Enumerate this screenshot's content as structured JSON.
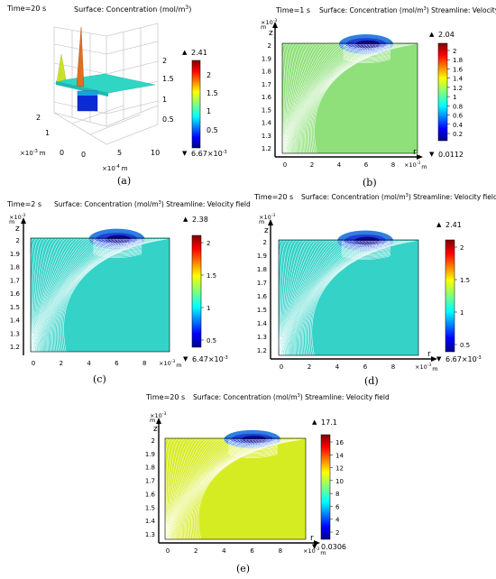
{
  "panels": [
    {
      "id": "a",
      "time_label": "Time=20 s",
      "plot_title": "Surface: Concentration (mol/m",
      "plot_title_tail": ")",
      "caption": "(a)",
      "colorbar": {
        "max_label": "2.41",
        "min_label": "6.67×10",
        "min_exp": "-3",
        "ticks": [
          "2",
          "1.5",
          "1",
          "0.5"
        ]
      },
      "axes": {
        "z_ticks": [
          "2",
          "1.5",
          "1",
          "0.5"
        ],
        "y_ticks": [
          "2",
          "1",
          "0"
        ],
        "x_ticks": [
          "0",
          "5",
          "10"
        ],
        "y_scale": "×10",
        "y_scale_exp": "-3",
        "y_unit": "m",
        "x_scale": "×10",
        "x_scale_exp": "-4",
        "x_unit": "m"
      }
    },
    {
      "id": "b",
      "time_label": "Time=1 s",
      "plot_title": "Surface: Concentration (mol/m",
      "plot_title_tail": ")  Streamline: Velocity field",
      "caption": "(b)",
      "fill_color": "#8fe07a",
      "colorbar": {
        "max_label": "2.04",
        "min_label": "0.0112",
        "ticks": [
          "2",
          "1.8",
          "1.6",
          "1.4",
          "1.2",
          "1",
          "0.8",
          "0.6",
          "0.4",
          "0.2"
        ]
      },
      "axes": {
        "z_label": "z",
        "r_label": "r",
        "z_ticks": [
          "2",
          "1.9",
          "1.8",
          "1.7",
          "1.6",
          "1.5",
          "1.4",
          "1.3",
          "1.2"
        ],
        "r_ticks": [
          "0",
          "2",
          "4",
          "6",
          "8"
        ],
        "scale": "×10",
        "scale_exp": "-3",
        "unit": "m"
      }
    },
    {
      "id": "c",
      "time_label": "Time=2 s",
      "plot_title": "Surface: Concentration (mol/m",
      "plot_title_tail": ")  Streamline: Velocity field",
      "caption": "(c)",
      "fill_color": "#35d2c8",
      "colorbar": {
        "max_label": "2.38",
        "min_label": "6.47×10",
        "min_exp": "-3",
        "ticks": [
          "2",
          "1.5",
          "1",
          "0.5"
        ]
      },
      "axes": {
        "z_label": "z",
        "z_ticks": [
          "2",
          "1.9",
          "1.8",
          "1.7",
          "1.6",
          "1.5",
          "1.4",
          "1.3",
          "1.2"
        ],
        "r_ticks": [
          "0",
          "2",
          "4",
          "6",
          "8"
        ],
        "scale": "×10",
        "scale_exp": "-3",
        "unit": "m"
      }
    },
    {
      "id": "d",
      "time_label": "Time=20 s",
      "plot_title": "Surface: Concentration (mol/m",
      "plot_title_tail": ")  Streamline: Velocity field",
      "caption": "(d)",
      "fill_color": "#35d2c8",
      "colorbar": {
        "max_label": "2.41",
        "min_label": "6.67×10",
        "min_exp": "-3",
        "ticks": [
          "2",
          "1.5",
          "1",
          "0.5"
        ]
      },
      "axes": {
        "z_label": "z",
        "r_label": "r",
        "z_ticks": [
          "2",
          "1.9",
          "1.8",
          "1.7",
          "1.6",
          "1.5",
          "1.4",
          "1.3",
          "1.2"
        ],
        "r_ticks": [
          "0",
          "2",
          "4",
          "6",
          "8"
        ],
        "scale": "×10",
        "scale_exp": "-3",
        "unit": "m"
      }
    },
    {
      "id": "e",
      "time_label": "Time=20 s",
      "plot_title": "Surface: Concentration (mol/m",
      "plot_title_tail": ")  Streamline: Velocity field",
      "caption": "(e)",
      "fill_color": "#d6ec22",
      "colorbar": {
        "max_label": "17.1",
        "min_label": "0.0306",
        "ticks": [
          "16",
          "14",
          "12",
          "10",
          "8",
          "6",
          "4",
          "2"
        ]
      },
      "axes": {
        "z_label": "z",
        "r_label": "r",
        "z_ticks": [
          "2",
          "1.9",
          "1.8",
          "1.7",
          "1.6",
          "1.5",
          "1.4",
          "1.3"
        ],
        "r_ticks": [
          "0",
          "2",
          "4",
          "6",
          "8"
        ],
        "scale": "×10",
        "scale_exp": "-3",
        "unit": "m"
      }
    }
  ]
}
